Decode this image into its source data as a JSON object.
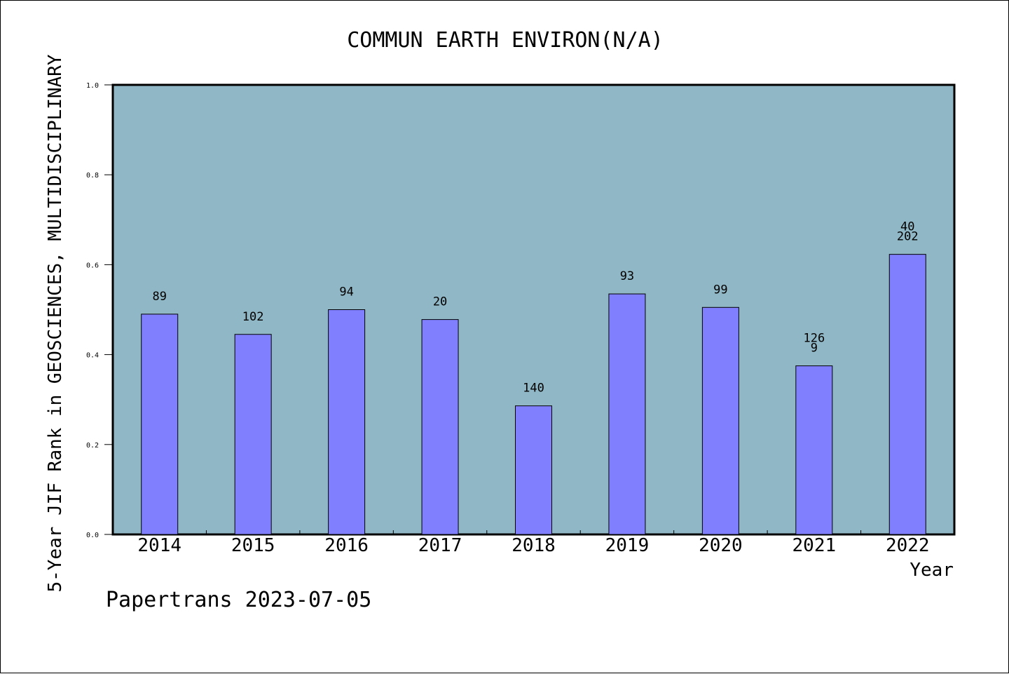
{
  "chart_data": {
    "type": "bar",
    "title": "COMMUN EARTH ENVIRON(N/A)",
    "xlabel": "Year",
    "ylabel": "5-Year JIF Rank in GEOSCIENCES, MULTIDISCIPLINARY",
    "categories": [
      "2014",
      "2015",
      "2016",
      "2017",
      "2018",
      "2019",
      "2020",
      "2021",
      "2022"
    ],
    "values": [
      0.49,
      0.445,
      0.5,
      0.478,
      0.286,
      0.535,
      0.505,
      0.375,
      0.623
    ],
    "labels": [
      [
        "89"
      ],
      [
        "102"
      ],
      [
        "94"
      ],
      [
        "20"
      ],
      [
        "140"
      ],
      [
        "93"
      ],
      [
        "99"
      ],
      [
        "126",
        "9"
      ],
      [
        "40",
        "202"
      ]
    ],
    "ylim": [
      0,
      1.0
    ],
    "yticks": [
      "0.0",
      "0.2",
      "0.4",
      "0.6",
      "0.8",
      "1.0"
    ],
    "footer": "Papertrans 2023-07-05",
    "colors": {
      "plot_background": "#8fb7c5",
      "bar": "#8080ff",
      "axis": "#000000"
    }
  }
}
